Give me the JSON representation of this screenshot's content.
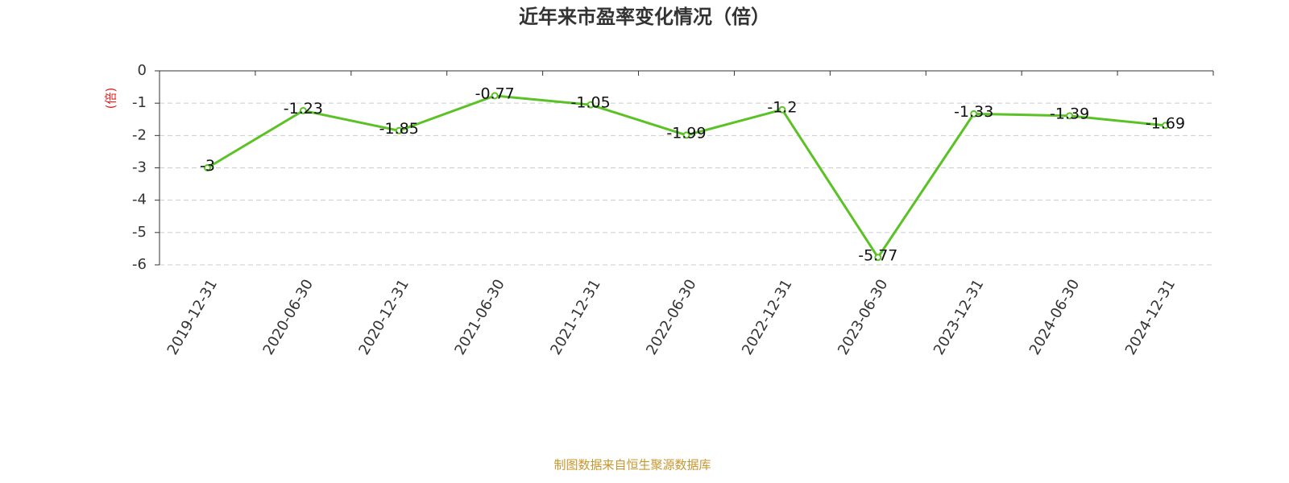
{
  "chart_data": {
    "type": "line",
    "title": "近年来市盈率变化情况（倍）",
    "y_label": "(倍)",
    "categories": [
      "2019-12-31",
      "2020-06-30",
      "2020-12-31",
      "2021-06-30",
      "2021-12-31",
      "2022-06-30",
      "2022-12-31",
      "2023-06-30",
      "2023-12-31",
      "2024-06-30",
      "2024-12-31"
    ],
    "values": [
      -3,
      -1.23,
      -1.85,
      -0.77,
      -1.05,
      -1.99,
      -1.2,
      -5.77,
      -1.33,
      -1.39,
      -1.69
    ],
    "color": "#5bc225",
    "ylim": [
      -6,
      0
    ],
    "yticks": [
      0,
      -1,
      -2,
      -3,
      -4,
      -5,
      -6
    ],
    "grid": true,
    "source": "制图数据来自恒生聚源数据库"
  }
}
